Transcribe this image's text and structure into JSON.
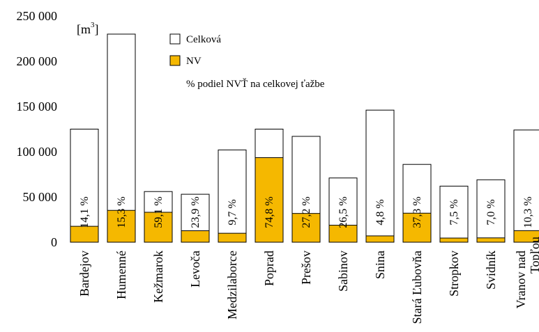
{
  "chart_data": {
    "type": "bar",
    "unit_label": "[m",
    "unit_sup": "3",
    "unit_close": "]",
    "yticks": [
      "0",
      "50 000",
      "100 000",
      "150 000",
      "200 000",
      "250 000"
    ],
    "ylim": [
      0,
      250000
    ],
    "categories": [
      "Bardejov",
      "Humenné",
      "Kežmarok",
      "Levoča",
      "Medzilaborce",
      "Poprad",
      "Prešov",
      "Sabinov",
      "Snina",
      "Stará Ľubovňa",
      "Stropkov",
      "Svidník",
      "Vranov nad Topľou"
    ],
    "series": [
      {
        "name": "Celková",
        "color": "#ffffff",
        "values": [
          125000,
          230000,
          56000,
          53000,
          102000,
          125000,
          117000,
          71000,
          146000,
          86000,
          62000,
          69000,
          124000
        ]
      },
      {
        "name": "NV",
        "color": "#f5b800",
        "values": [
          17600,
          35200,
          33100,
          12700,
          9900,
          93500,
          31800,
          18800,
          7000,
          32100,
          4600,
          4800,
          12800
        ]
      }
    ],
    "percent_series_name": "% podiel NVŤ na celkovej ťažbe",
    "percent_labels": [
      "14,1 %",
      "15,3 %",
      "59,1 %",
      "23,9 %",
      "9,7 %",
      "74,8 %",
      "27,2 %",
      "26,5 %",
      "4,8 %",
      "37,3 %",
      "7,5 %",
      "7,0 %",
      "10,3 %"
    ],
    "legend": [
      "Celková",
      "NV",
      "% podiel NVŤ na celkovej ťažbe"
    ],
    "legend_position": "top-center",
    "grid": false
  }
}
